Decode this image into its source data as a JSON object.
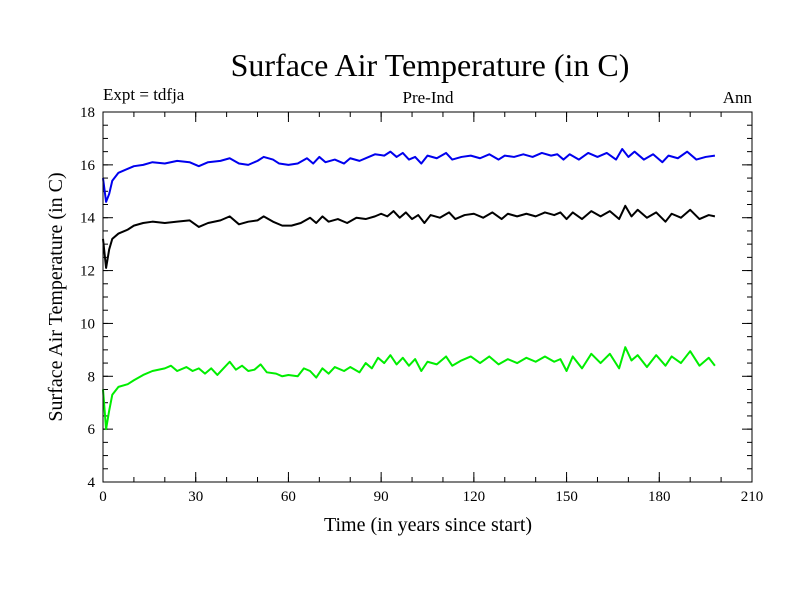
{
  "chart_data": {
    "type": "line",
    "title": "Surface Air Temperature (in C)",
    "subtitle_left": "Expt = tdfja",
    "subtitle_center": "Pre-Ind",
    "subtitle_right": "Ann",
    "xlabel": "Time (in years since start)",
    "ylabel": "Surface Air Temperature (in C)",
    "xlim": [
      0,
      210
    ],
    "ylim": [
      4,
      18
    ],
    "xticks": [
      0,
      30,
      60,
      90,
      120,
      150,
      180,
      210
    ],
    "yticks": [
      4,
      6,
      8,
      10,
      12,
      14,
      16,
      18
    ],
    "x_minor_step": 10,
    "y_minor_step": 0.5,
    "grid": false,
    "series": [
      {
        "name": "upper (blue)",
        "color": "#0000ee",
        "points": [
          [
            0,
            15.5
          ],
          [
            1,
            14.6
          ],
          [
            2,
            14.9
          ],
          [
            3,
            15.4
          ],
          [
            5,
            15.7
          ],
          [
            8,
            15.85
          ],
          [
            10,
            15.95
          ],
          [
            13,
            16.0
          ],
          [
            16,
            16.1
          ],
          [
            20,
            16.05
          ],
          [
            24,
            16.15
          ],
          [
            28,
            16.1
          ],
          [
            31,
            15.95
          ],
          [
            34,
            16.1
          ],
          [
            38,
            16.15
          ],
          [
            41,
            16.25
          ],
          [
            44,
            16.05
          ],
          [
            47,
            16.0
          ],
          [
            50,
            16.15
          ],
          [
            52,
            16.3
          ],
          [
            55,
            16.2
          ],
          [
            57,
            16.05
          ],
          [
            60,
            16.0
          ],
          [
            63,
            16.05
          ],
          [
            66,
            16.25
          ],
          [
            68,
            16.05
          ],
          [
            70,
            16.3
          ],
          [
            72,
            16.1
          ],
          [
            75,
            16.2
          ],
          [
            78,
            16.05
          ],
          [
            80,
            16.25
          ],
          [
            83,
            16.15
          ],
          [
            86,
            16.3
          ],
          [
            88,
            16.4
          ],
          [
            91,
            16.35
          ],
          [
            93,
            16.5
          ],
          [
            95,
            16.3
          ],
          [
            97,
            16.45
          ],
          [
            99,
            16.2
          ],
          [
            101,
            16.3
          ],
          [
            103,
            16.05
          ],
          [
            105,
            16.35
          ],
          [
            108,
            16.25
          ],
          [
            111,
            16.45
          ],
          [
            113,
            16.2
          ],
          [
            116,
            16.3
          ],
          [
            119,
            16.35
          ],
          [
            122,
            16.25
          ],
          [
            125,
            16.4
          ],
          [
            128,
            16.2
          ],
          [
            130,
            16.35
          ],
          [
            133,
            16.3
          ],
          [
            136,
            16.4
          ],
          [
            139,
            16.3
          ],
          [
            142,
            16.45
          ],
          [
            145,
            16.35
          ],
          [
            147,
            16.4
          ],
          [
            149,
            16.2
          ],
          [
            151,
            16.4
          ],
          [
            154,
            16.2
          ],
          [
            157,
            16.45
          ],
          [
            160,
            16.3
          ],
          [
            163,
            16.45
          ],
          [
            166,
            16.2
          ],
          [
            168,
            16.6
          ],
          [
            170,
            16.3
          ],
          [
            172,
            16.5
          ],
          [
            175,
            16.2
          ],
          [
            178,
            16.4
          ],
          [
            181,
            16.1
          ],
          [
            183,
            16.35
          ],
          [
            186,
            16.25
          ],
          [
            189,
            16.5
          ],
          [
            192,
            16.2
          ],
          [
            195,
            16.3
          ],
          [
            198,
            16.35
          ]
        ]
      },
      {
        "name": "middle (black)",
        "color": "#000000",
        "points": [
          [
            0,
            13.2
          ],
          [
            1,
            12.1
          ],
          [
            2,
            12.8
          ],
          [
            3,
            13.2
          ],
          [
            5,
            13.4
          ],
          [
            8,
            13.55
          ],
          [
            10,
            13.7
          ],
          [
            13,
            13.8
          ],
          [
            16,
            13.85
          ],
          [
            20,
            13.8
          ],
          [
            24,
            13.85
          ],
          [
            28,
            13.9
          ],
          [
            31,
            13.65
          ],
          [
            34,
            13.8
          ],
          [
            38,
            13.9
          ],
          [
            41,
            14.05
          ],
          [
            44,
            13.75
          ],
          [
            47,
            13.85
          ],
          [
            50,
            13.9
          ],
          [
            52,
            14.05
          ],
          [
            55,
            13.85
          ],
          [
            58,
            13.7
          ],
          [
            61,
            13.7
          ],
          [
            64,
            13.8
          ],
          [
            67,
            14.0
          ],
          [
            69,
            13.8
          ],
          [
            71,
            14.05
          ],
          [
            73,
            13.85
          ],
          [
            76,
            13.95
          ],
          [
            79,
            13.8
          ],
          [
            82,
            14.0
          ],
          [
            85,
            13.95
          ],
          [
            88,
            14.05
          ],
          [
            90,
            14.15
          ],
          [
            92,
            14.05
          ],
          [
            94,
            14.25
          ],
          [
            96,
            14.0
          ],
          [
            98,
            14.2
          ],
          [
            100,
            13.95
          ],
          [
            102,
            14.1
          ],
          [
            104,
            13.8
          ],
          [
            106,
            14.1
          ],
          [
            109,
            14.0
          ],
          [
            112,
            14.2
          ],
          [
            114,
            13.95
          ],
          [
            117,
            14.1
          ],
          [
            120,
            14.15
          ],
          [
            123,
            14.0
          ],
          [
            126,
            14.2
          ],
          [
            129,
            13.95
          ],
          [
            131,
            14.15
          ],
          [
            134,
            14.05
          ],
          [
            137,
            14.15
          ],
          [
            140,
            14.05
          ],
          [
            143,
            14.2
          ],
          [
            146,
            14.1
          ],
          [
            148,
            14.2
          ],
          [
            150,
            13.95
          ],
          [
            152,
            14.2
          ],
          [
            155,
            13.95
          ],
          [
            158,
            14.25
          ],
          [
            161,
            14.05
          ],
          [
            164,
            14.25
          ],
          [
            167,
            13.95
          ],
          [
            169,
            14.45
          ],
          [
            171,
            14.05
          ],
          [
            173,
            14.3
          ],
          [
            176,
            14.0
          ],
          [
            179,
            14.2
          ],
          [
            182,
            13.85
          ],
          [
            184,
            14.15
          ],
          [
            187,
            14.0
          ],
          [
            190,
            14.3
          ],
          [
            193,
            13.95
          ],
          [
            196,
            14.1
          ],
          [
            198,
            14.05
          ]
        ]
      },
      {
        "name": "lower (green)",
        "color": "#00ee00",
        "points": [
          [
            0,
            7.5
          ],
          [
            1,
            6.0
          ],
          [
            2,
            6.7
          ],
          [
            3,
            7.3
          ],
          [
            5,
            7.6
          ],
          [
            8,
            7.7
          ],
          [
            10,
            7.85
          ],
          [
            13,
            8.05
          ],
          [
            16,
            8.2
          ],
          [
            20,
            8.3
          ],
          [
            22,
            8.4
          ],
          [
            24,
            8.2
          ],
          [
            27,
            8.35
          ],
          [
            29,
            8.2
          ],
          [
            31,
            8.3
          ],
          [
            33,
            8.1
          ],
          [
            35,
            8.3
          ],
          [
            37,
            8.05
          ],
          [
            39,
            8.3
          ],
          [
            41,
            8.55
          ],
          [
            43,
            8.25
          ],
          [
            45,
            8.4
          ],
          [
            47,
            8.2
          ],
          [
            49,
            8.25
          ],
          [
            51,
            8.45
          ],
          [
            53,
            8.15
          ],
          [
            56,
            8.1
          ],
          [
            58,
            8.0
          ],
          [
            60,
            8.05
          ],
          [
            63,
            8.0
          ],
          [
            65,
            8.3
          ],
          [
            67,
            8.2
          ],
          [
            69,
            7.95
          ],
          [
            71,
            8.3
          ],
          [
            73,
            8.1
          ],
          [
            75,
            8.35
          ],
          [
            78,
            8.2
          ],
          [
            80,
            8.35
          ],
          [
            83,
            8.15
          ],
          [
            85,
            8.5
          ],
          [
            87,
            8.3
          ],
          [
            89,
            8.7
          ],
          [
            91,
            8.5
          ],
          [
            93,
            8.8
          ],
          [
            95,
            8.45
          ],
          [
            97,
            8.7
          ],
          [
            99,
            8.4
          ],
          [
            101,
            8.65
          ],
          [
            103,
            8.2
          ],
          [
            105,
            8.55
          ],
          [
            108,
            8.45
          ],
          [
            111,
            8.75
          ],
          [
            113,
            8.4
          ],
          [
            116,
            8.6
          ],
          [
            119,
            8.75
          ],
          [
            122,
            8.5
          ],
          [
            125,
            8.75
          ],
          [
            128,
            8.45
          ],
          [
            131,
            8.65
          ],
          [
            134,
            8.5
          ],
          [
            137,
            8.7
          ],
          [
            140,
            8.55
          ],
          [
            143,
            8.75
          ],
          [
            146,
            8.55
          ],
          [
            148,
            8.65
          ],
          [
            150,
            8.2
          ],
          [
            152,
            8.75
          ],
          [
            155,
            8.3
          ],
          [
            158,
            8.85
          ],
          [
            161,
            8.5
          ],
          [
            164,
            8.85
          ],
          [
            167,
            8.3
          ],
          [
            169,
            9.1
          ],
          [
            171,
            8.6
          ],
          [
            173,
            8.8
          ],
          [
            176,
            8.35
          ],
          [
            179,
            8.8
          ],
          [
            182,
            8.4
          ],
          [
            184,
            8.75
          ],
          [
            187,
            8.5
          ],
          [
            190,
            8.95
          ],
          [
            193,
            8.4
          ],
          [
            196,
            8.7
          ],
          [
            198,
            8.4
          ]
        ]
      }
    ]
  }
}
